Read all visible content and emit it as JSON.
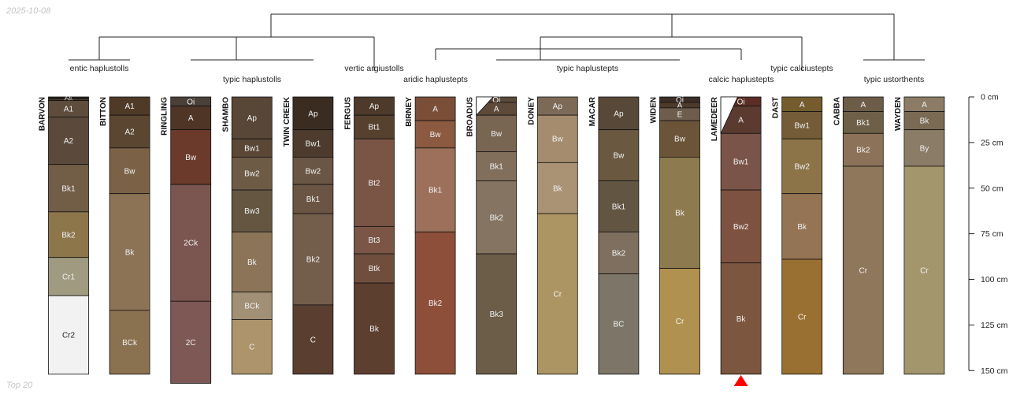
{
  "header": {
    "date": "2025-10-08"
  },
  "footer": {
    "note": "Top 20"
  },
  "chart_data": {
    "type": "soil-profile-sketch",
    "depth_axis": {
      "unit": "cm",
      "range": [
        0,
        150
      ],
      "ticks": [
        0,
        25,
        50,
        75,
        100,
        125,
        150
      ],
      "tick_labels": [
        "0 cm",
        "25 cm",
        "50 cm",
        "75 cm",
        "100 cm",
        "125 cm",
        "150 cm"
      ]
    },
    "profiles": [
      {
        "name": "BARVON",
        "horizons": [
          {
            "name": "Oi",
            "top": 0,
            "bottom": 1,
            "color": "#2b241e"
          },
          {
            "name": "Oe",
            "top": 1,
            "bottom": 2,
            "color": "#4a3a2e"
          },
          {
            "name": "A1",
            "top": 2,
            "bottom": 11,
            "color": "#5e4c3c"
          },
          {
            "name": "A2",
            "top": 11,
            "bottom": 37,
            "color": "#5b4a3c"
          },
          {
            "name": "Bk1",
            "top": 37,
            "bottom": 63,
            "color": "#725d47"
          },
          {
            "name": "Bk2",
            "top": 63,
            "bottom": 88,
            "color": "#8e764b"
          },
          {
            "name": "Cr1",
            "top": 88,
            "bottom": 109,
            "color": "#a09a80"
          },
          {
            "name": "Cr2",
            "top": 109,
            "bottom": 152,
            "color": "#f2f2f2"
          }
        ]
      },
      {
        "name": "BITTON",
        "horizons": [
          {
            "name": "A1",
            "top": 0,
            "bottom": 10,
            "color": "#4f3a28"
          },
          {
            "name": "A2",
            "top": 10,
            "bottom": 28,
            "color": "#5a4631"
          },
          {
            "name": "Bw",
            "top": 28,
            "bottom": 53,
            "color": "#7b6246"
          },
          {
            "name": "Bk",
            "top": 53,
            "bottom": 117,
            "color": "#8c7356"
          },
          {
            "name": "BCk",
            "top": 117,
            "bottom": 152,
            "color": "#8a7150"
          }
        ]
      },
      {
        "name": "RINGLING",
        "horizons": [
          {
            "name": "Oi",
            "top": 0,
            "bottom": 5,
            "color": "#4a4038"
          },
          {
            "name": "A",
            "top": 5,
            "bottom": 18,
            "color": "#4e3526"
          },
          {
            "name": "Bw",
            "top": 18,
            "bottom": 48,
            "color": "#6c3a2a"
          },
          {
            "name": "2Ck",
            "top": 48,
            "bottom": 112,
            "color": "#7b5550"
          },
          {
            "name": "2C",
            "top": 112,
            "bottom": 157,
            "color": "#7e5855"
          }
        ]
      },
      {
        "name": "SHAMBO",
        "horizons": [
          {
            "name": "Ap",
            "top": 0,
            "bottom": 23,
            "color": "#584636"
          },
          {
            "name": "Bw1",
            "top": 23,
            "bottom": 33,
            "color": "#5a4736"
          },
          {
            "name": "Bw2",
            "top": 33,
            "bottom": 51,
            "color": "#6e5b46"
          },
          {
            "name": "Bw3",
            "top": 51,
            "bottom": 74,
            "color": "#645640"
          },
          {
            "name": "Bk",
            "top": 74,
            "bottom": 107,
            "color": "#8b7457"
          },
          {
            "name": "BCk",
            "top": 107,
            "bottom": 122,
            "color": "#a18f76"
          },
          {
            "name": "C",
            "top": 122,
            "bottom": 152,
            "color": "#ad946a"
          }
        ]
      },
      {
        "name": "TWIN CREEK",
        "horizons": [
          {
            "name": "Ap",
            "top": 0,
            "bottom": 18,
            "color": "#3b2c22"
          },
          {
            "name": "Bw1",
            "top": 18,
            "bottom": 33,
            "color": "#4d3c2d"
          },
          {
            "name": "Bw2",
            "top": 33,
            "bottom": 48,
            "color": "#6a5644"
          },
          {
            "name": "Bk1",
            "top": 48,
            "bottom": 64,
            "color": "#6a5544"
          },
          {
            "name": "Bk2",
            "top": 64,
            "bottom": 114,
            "color": "#735d4b"
          },
          {
            "name": "C",
            "top": 114,
            "bottom": 152,
            "color": "#5a3f30"
          }
        ]
      },
      {
        "name": "FERGUS",
        "horizons": [
          {
            "name": "Ap",
            "top": 0,
            "bottom": 10,
            "color": "#4d3a2b"
          },
          {
            "name": "Bt1",
            "top": 10,
            "bottom": 23,
            "color": "#56402e"
          },
          {
            "name": "Bt2",
            "top": 23,
            "bottom": 71,
            "color": "#7a5444"
          },
          {
            "name": "Bt3",
            "top": 71,
            "bottom": 86,
            "color": "#7b5646"
          },
          {
            "name": "Btk",
            "top": 86,
            "bottom": 102,
            "color": "#704e3e"
          },
          {
            "name": "Bk",
            "top": 102,
            "bottom": 152,
            "color": "#5d3f30"
          }
        ]
      },
      {
        "name": "BIRNEY",
        "horizons": [
          {
            "name": "A",
            "top": 0,
            "bottom": 13,
            "color": "#7b4e38"
          },
          {
            "name": "Bw",
            "top": 13,
            "bottom": 28,
            "color": "#8b5a40"
          },
          {
            "name": "Bk1",
            "top": 28,
            "bottom": 74,
            "color": "#9c705a"
          },
          {
            "name": "Bk2",
            "top": 74,
            "bottom": 152,
            "color": "#8e4f3a"
          }
        ]
      },
      {
        "name": "BROADUS",
        "horizons": [
          {
            "name": "Oi",
            "top": 0,
            "bottom": 3,
            "color": "#5a4a3a"
          },
          {
            "name": "A",
            "top": 3,
            "bottom": 10,
            "color": "#5e4a3a"
          },
          {
            "name": "Bw",
            "top": 10,
            "bottom": 30,
            "color": "#786552"
          },
          {
            "name": "Bk1",
            "top": 30,
            "bottom": 46,
            "color": "#816f5c"
          },
          {
            "name": "Bk2",
            "top": 46,
            "bottom": 86,
            "color": "#847461"
          },
          {
            "name": "Bk3",
            "top": 86,
            "bottom": 152,
            "color": "#6b5d48"
          }
        ]
      },
      {
        "name": "DONEY",
        "horizons": [
          {
            "name": "Ap",
            "top": 0,
            "bottom": 10,
            "color": "#7d6a56"
          },
          {
            "name": "Bw",
            "top": 10,
            "bottom": 36,
            "color": "#a68c6e"
          },
          {
            "name": "Bk",
            "top": 36,
            "bottom": 64,
            "color": "#aa9274"
          },
          {
            "name": "Cr",
            "top": 64,
            "bottom": 152,
            "color": "#ad9563"
          }
        ]
      },
      {
        "name": "MACAR",
        "horizons": [
          {
            "name": "Ap",
            "top": 0,
            "bottom": 18,
            "color": "#584837"
          },
          {
            "name": "Bw",
            "top": 18,
            "bottom": 46,
            "color": "#6a5840"
          },
          {
            "name": "Bk1",
            "top": 46,
            "bottom": 74,
            "color": "#625643"
          },
          {
            "name": "Bk2",
            "top": 74,
            "bottom": 97,
            "color": "#7e6f5e"
          },
          {
            "name": "BC",
            "top": 97,
            "bottom": 152,
            "color": "#7c7568"
          }
        ]
      },
      {
        "name": "WIDEN",
        "horizons": [
          {
            "name": "Oi",
            "top": 0,
            "bottom": 3,
            "color": "#3a2e26"
          },
          {
            "name": "A",
            "top": 3,
            "bottom": 6,
            "color": "#4c3b2c"
          },
          {
            "name": "E",
            "top": 6,
            "bottom": 13,
            "color": "#6e5d4d"
          },
          {
            "name": "Bw",
            "top": 13,
            "bottom": 33,
            "color": "#6b5438"
          },
          {
            "name": "Bk",
            "top": 33,
            "bottom": 94,
            "color": "#8d7a4e"
          },
          {
            "name": "Cr",
            "top": 94,
            "bottom": 152,
            "color": "#b0914f"
          }
        ]
      },
      {
        "name": "LAMEDEER",
        "horizons": [
          {
            "name": "Oi",
            "top": 0,
            "bottom": 5,
            "color": "#5a2e24"
          },
          {
            "name": "A",
            "top": 5,
            "bottom": 20,
            "color": "#5b3a30"
          },
          {
            "name": "Bw1",
            "top": 20,
            "bottom": 51,
            "color": "#7a5448"
          },
          {
            "name": "Bw2",
            "top": 51,
            "bottom": 91,
            "color": "#7e5240"
          },
          {
            "name": "Bk",
            "top": 91,
            "bottom": 152,
            "color": "#7d5640"
          }
        ]
      },
      {
        "name": "DAST",
        "horizons": [
          {
            "name": "A",
            "top": 0,
            "bottom": 8,
            "color": "#745c2e"
          },
          {
            "name": "Bw1",
            "top": 8,
            "bottom": 23,
            "color": "#745c38"
          },
          {
            "name": "Bw2",
            "top": 23,
            "bottom": 53,
            "color": "#8c7448"
          },
          {
            "name": "Bk",
            "top": 53,
            "bottom": 89,
            "color": "#947454"
          },
          {
            "name": "Cr",
            "top": 89,
            "bottom": 152,
            "color": "#9a7032"
          }
        ]
      },
      {
        "name": "CABBA",
        "horizons": [
          {
            "name": "A",
            "top": 0,
            "bottom": 8,
            "color": "#6c5c48"
          },
          {
            "name": "Bk1",
            "top": 8,
            "bottom": 20,
            "color": "#6e6048"
          },
          {
            "name": "Bk2",
            "top": 20,
            "bottom": 38,
            "color": "#8c7258"
          },
          {
            "name": "Cr",
            "top": 38,
            "bottom": 152,
            "color": "#8e775a"
          }
        ]
      },
      {
        "name": "WAYDEN",
        "horizons": [
          {
            "name": "A",
            "top": 0,
            "bottom": 8,
            "color": "#8c7c66"
          },
          {
            "name": "Bk",
            "top": 8,
            "bottom": 18,
            "color": "#7a6a54"
          },
          {
            "name": "By",
            "top": 18,
            "bottom": 38,
            "color": "#8a7c66"
          },
          {
            "name": "Cr",
            "top": 38,
            "bottom": 152,
            "color": "#a4966c"
          }
        ]
      }
    ],
    "subgroups": [
      "entic haplustolls",
      "typic haplustolls",
      "vertic argiustolls",
      "aridic haplustepts",
      "typic haplustepts",
      "calcic haplustepts",
      "typic calciustepts",
      "typic ustorthents"
    ],
    "dendrogram": {
      "groups": [
        {
          "label": "entic haplustolls",
          "members": [
            "BARVON",
            "BITTON"
          ]
        },
        {
          "label": "typic haplustolls",
          "members": [
            "RINGLING",
            "SHAMBO",
            "TWIN CREEK"
          ]
        },
        {
          "label": "vertic argiustolls",
          "members": [
            "FERGUS"
          ]
        },
        {
          "label": "aridic haplustepts",
          "members": [
            "BIRNEY"
          ]
        },
        {
          "label": "typic haplustepts",
          "members": [
            "BROADUS",
            "DONEY",
            "MACAR",
            "WIDEN"
          ]
        },
        {
          "label": "calcic haplustepts",
          "members": [
            "LAMEDEER"
          ]
        },
        {
          "label": "typic calciustepts",
          "members": [
            "DAST"
          ]
        },
        {
          "label": "typic ustorthents",
          "members": [
            "CABBA",
            "WAYDEN"
          ]
        }
      ]
    },
    "marker": {
      "profile": "LAMEDEER",
      "shape": "triangle",
      "color": "#ff0000"
    }
  }
}
